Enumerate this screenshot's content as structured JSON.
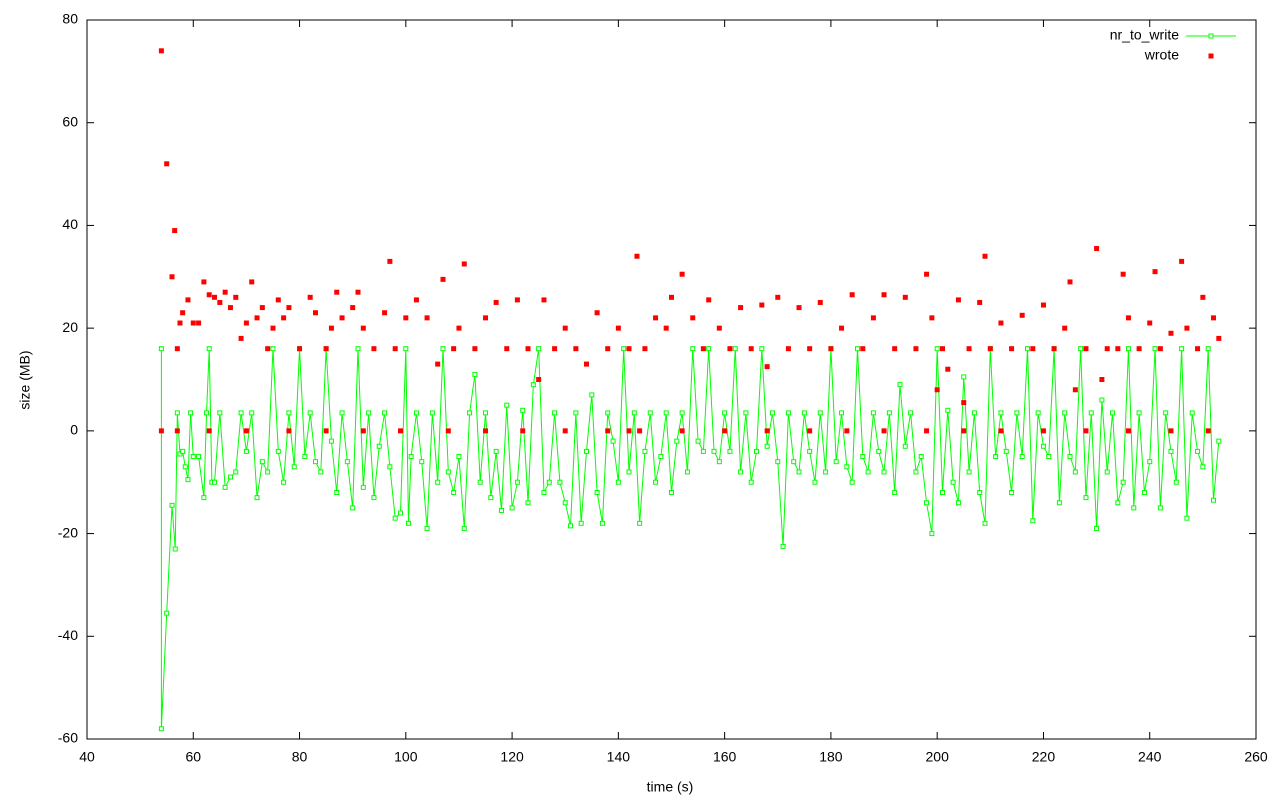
{
  "chart_data": {
    "type": "line",
    "xlabel": "time (s)",
    "ylabel": "size (MB)",
    "xlim": [
      40,
      260
    ],
    "xticks": [
      40,
      60,
      80,
      100,
      120,
      140,
      160,
      180,
      200,
      220,
      240,
      260
    ],
    "ylim": [
      -60,
      80
    ],
    "yticks": [
      -60,
      -40,
      -20,
      0,
      20,
      40,
      60,
      80
    ],
    "legend": "top right",
    "series": [
      {
        "name": "nr_to_write",
        "color": "#00ff00",
        "style": "linespoints",
        "x": [
          54,
          54,
          55,
          56,
          56.6,
          57,
          57.5,
          58,
          58.5,
          59,
          59.5,
          60,
          61,
          62,
          62.5,
          63,
          63.5,
          64,
          65,
          66,
          67,
          68,
          69,
          70,
          71,
          72,
          73,
          74,
          75,
          76,
          77,
          78,
          79,
          80,
          81,
          82,
          83,
          84,
          85,
          86,
          87,
          88,
          89,
          90,
          91,
          92,
          93,
          94,
          95,
          96,
          97,
          98,
          99,
          100,
          100.5,
          101,
          102,
          103,
          104,
          105,
          106,
          107,
          108,
          109,
          110,
          111,
          112,
          113,
          114,
          115,
          116,
          117,
          118,
          119,
          120,
          121,
          122,
          123,
          124,
          125,
          126,
          127,
          128,
          129,
          130,
          131,
          132,
          133,
          134,
          135,
          136,
          137,
          138,
          139,
          140,
          141,
          142,
          143,
          144,
          145,
          146,
          147,
          148,
          149,
          150,
          151,
          152,
          153,
          154,
          155,
          156,
          157,
          158,
          159,
          160,
          161,
          162,
          163,
          164,
          165,
          166,
          167,
          168,
          169,
          170,
          171,
          172,
          173,
          174,
          175,
          176,
          177,
          178,
          179,
          180,
          181,
          182,
          183,
          184,
          185,
          186,
          187,
          188,
          189,
          190,
          191,
          192,
          193,
          194,
          195,
          196,
          197,
          198,
          199,
          200,
          201,
          202,
          203,
          204,
          205,
          206,
          207,
          208,
          209,
          210,
          211,
          212,
          213,
          214,
          215,
          216,
          217,
          218,
          219,
          220,
          221,
          222,
          223,
          224,
          225,
          226,
          227,
          228,
          229,
          230,
          231,
          232,
          233,
          234,
          235,
          236,
          237,
          238,
          239,
          240,
          241,
          242,
          243,
          244,
          245,
          246,
          247,
          248,
          249,
          250,
          251,
          252,
          253
        ],
        "values": [
          16,
          -58,
          -35.5,
          -14.5,
          -23,
          3.5,
          -4.5,
          -4,
          -7,
          -9.5,
          3.5,
          -5,
          -5,
          -13,
          3.5,
          16,
          -10,
          -10,
          3.5,
          -11,
          -9,
          -8,
          3.5,
          -4,
          3.5,
          -13,
          -6,
          -8,
          16,
          -4,
          -10,
          3.5,
          -7,
          16,
          -5,
          3.5,
          -6,
          -8,
          16,
          -2,
          -12,
          3.5,
          -6,
          -15,
          16,
          -11,
          3.5,
          -13,
          -3,
          3.5,
          -7,
          -17,
          -16,
          16,
          -18,
          -5,
          3.5,
          -6,
          -19,
          3.5,
          -10,
          16,
          -8,
          -12,
          -5,
          -19,
          3.5,
          11,
          -10,
          3.5,
          -13,
          -4,
          -15.5,
          5,
          -15,
          -10,
          4,
          -14,
          9,
          16,
          -12,
          -10,
          3.5,
          -10,
          -14,
          -18.5,
          3.5,
          -18,
          -4,
          7,
          -12,
          -18,
          3.5,
          -2,
          -10,
          16,
          -8,
          3.5,
          -18,
          -4,
          3.5,
          -10,
          -5,
          3.5,
          -12,
          -2,
          3.5,
          -8,
          16,
          -2,
          -4,
          16,
          -4,
          -6,
          3.5,
          -4,
          16,
          -8,
          3.5,
          -10,
          -4,
          16,
          -3,
          3.5,
          -6,
          -22.5,
          3.5,
          -6,
          -8,
          3.5,
          -4,
          -10,
          3.5,
          -8,
          16,
          -6,
          3.5,
          -7,
          -10,
          16,
          -5,
          -8,
          3.5,
          -4,
          -8,
          3.5,
          -12,
          9,
          -3,
          3.5,
          -8,
          -5,
          -14,
          -20,
          16,
          -12,
          4,
          -10,
          -14,
          10.5,
          -8,
          3.5,
          -12,
          -18,
          16,
          -5,
          3.5,
          -4,
          -12,
          3.5,
          -5,
          16,
          -17.5,
          3.5,
          -3,
          -5,
          16,
          -14,
          3.5,
          -5,
          -8,
          16,
          -13,
          3.5,
          -19,
          6,
          -8,
          3.5,
          -14,
          -10,
          16,
          -15,
          3.5,
          -12,
          -6,
          16,
          -15,
          3.5,
          -4,
          -10,
          16,
          -17,
          3.5,
          -4,
          -7,
          16,
          -13.5,
          -2
        ]
      },
      {
        "name": "wrote",
        "color": "#ff0000",
        "style": "points",
        "x": [
          54,
          55,
          56,
          56.5,
          57,
          57.5,
          58,
          59,
          60,
          61,
          62,
          63,
          64,
          65,
          66,
          67,
          68,
          69,
          70,
          71,
          72,
          73,
          74,
          75,
          76,
          77,
          78,
          80,
          82,
          83,
          85,
          86,
          87,
          88,
          90,
          91,
          92,
          94,
          96,
          97,
          98,
          100,
          102,
          104,
          106,
          107,
          109,
          110,
          111,
          113,
          115,
          117,
          119,
          121,
          123,
          125,
          126,
          128,
          130,
          132,
          134,
          136,
          138,
          140,
          142,
          143.5,
          145,
          147,
          149,
          150,
          152,
          154,
          156,
          157,
          159,
          161,
          163,
          165,
          167,
          168,
          170,
          172,
          174,
          176,
          178,
          180,
          182,
          184,
          186,
          188,
          190,
          192,
          194,
          196,
          198,
          199,
          200,
          201,
          202,
          204,
          205,
          206,
          208,
          209,
          210,
          212,
          214,
          216,
          218,
          220,
          222,
          224,
          225,
          226,
          228,
          230,
          231,
          232,
          234,
          235,
          236,
          238,
          240,
          241,
          242,
          244,
          246,
          247,
          249,
          250,
          252,
          253,
          54,
          57,
          63,
          70,
          78,
          85,
          92,
          99,
          108,
          115,
          122,
          130,
          138,
          142,
          144,
          152,
          160,
          168,
          176,
          183,
          190,
          198,
          205,
          212,
          220,
          228,
          236,
          244,
          251
        ],
        "values": [
          74,
          52,
          30,
          39,
          16,
          21,
          23,
          25.5,
          21,
          21,
          29,
          26.5,
          26,
          25,
          27,
          24,
          26,
          18,
          21,
          29,
          22,
          24,
          16,
          20,
          25.5,
          22,
          24,
          16,
          26,
          23,
          16,
          20,
          27,
          22,
          24,
          27,
          20,
          16,
          23,
          33,
          16,
          22,
          25.5,
          22,
          13,
          29.5,
          16,
          20,
          32.5,
          16,
          22,
          25,
          16,
          25.5,
          16,
          10,
          25.5,
          16,
          20,
          16,
          13,
          23,
          16,
          20,
          16,
          34,
          16,
          22,
          20,
          26,
          30.5,
          22,
          16,
          25.5,
          20,
          16,
          24,
          16,
          24.5,
          12.5,
          26,
          16,
          24,
          16,
          25,
          16,
          20,
          26.5,
          16,
          22,
          26.5,
          16,
          26,
          16,
          30.5,
          22,
          8,
          16,
          12,
          25.5,
          5.5,
          16,
          25,
          34,
          16,
          21,
          16,
          22.5,
          16,
          24.5,
          16,
          20,
          29,
          8,
          16,
          35.5,
          10,
          16,
          16,
          30.5,
          22,
          16,
          21,
          31,
          16,
          19,
          33,
          20,
          16,
          26,
          22,
          18,
          0,
          0,
          0,
          0,
          0,
          0,
          0,
          0,
          0,
          0,
          0,
          0,
          0,
          0,
          0,
          0,
          0,
          0,
          0,
          0,
          0,
          0,
          0,
          0,
          0,
          0,
          0,
          0,
          0
        ]
      }
    ]
  }
}
